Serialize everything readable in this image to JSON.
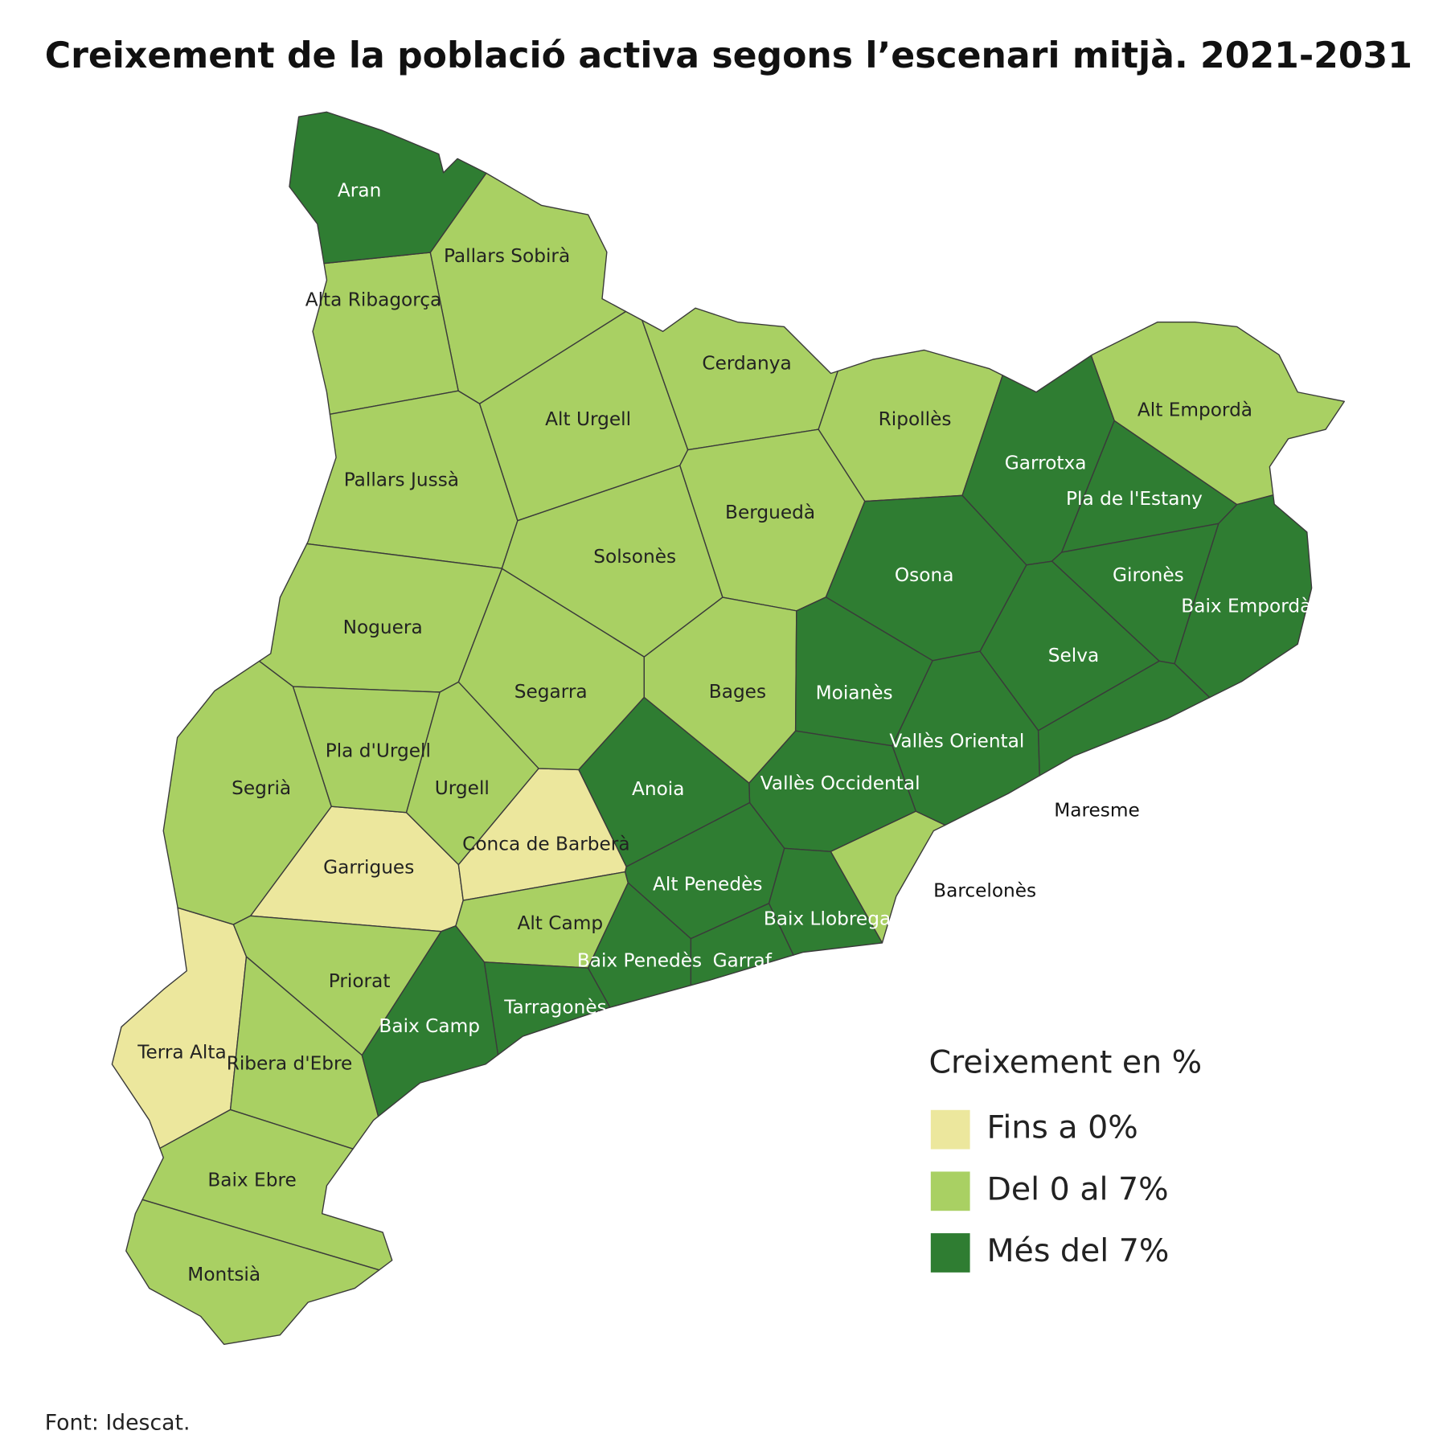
{
  "title": "Creixement de la població activa segons l’escenari mitjà. 2021-2031",
  "legend": {
    "title": "Creixement en %",
    "items": [
      {
        "label": "Fins a 0%",
        "color": "#ece79d",
        "regions": [
          "Garrigues",
          "Conca de Barberà",
          "Terra Alta"
        ]
      },
      {
        "label": "Del 0 al 7%",
        "color": "#a9d063",
        "regions": [
          "Pallars Sobirà",
          "Alta Ribagorça",
          "Pallars Jussà",
          "Alt Urgell",
          "Cerdanya",
          "Ripollès",
          "Alt Empordà",
          "Berguedà",
          "Solsonès",
          "Noguera",
          "Segarra",
          "Bages",
          "Pla d'Urgell",
          "Urgell",
          "Segrià",
          "Alt Camp",
          "Barcelonès",
          "Priorat",
          "Ribera d'Ebre",
          "Baix Ebre",
          "Montsià"
        ]
      },
      {
        "label": "Més del 7%",
        "color": "#2f7d32",
        "regions": [
          "Aran",
          "Garrotxa",
          "Pla de l'Estany",
          "Gironès",
          "Baix Empordà",
          "Selva",
          "Osona",
          "Moianès",
          "Vallès Oriental",
          "Maresme",
          "Vallès Occidental",
          "Anoia",
          "Alt Penedès",
          "Baix Llobregat",
          "Garraf",
          "Baix Penedès",
          "Tarragonès",
          "Baix Camp"
        ]
      }
    ]
  },
  "source": "Font: Idescat."
}
